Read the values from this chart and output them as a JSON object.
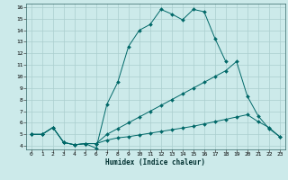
{
  "xlabel": "Humidex (Indice chaleur)",
  "bg_color": "#cceaea",
  "line_color": "#006868",
  "grid_color": "#aacece",
  "xlim": [
    -0.5,
    23.5
  ],
  "ylim": [
    3.7,
    16.3
  ],
  "xticks": [
    0,
    1,
    2,
    3,
    4,
    5,
    6,
    7,
    8,
    9,
    10,
    11,
    12,
    13,
    14,
    15,
    16,
    17,
    18,
    19,
    20,
    21,
    22,
    23
  ],
  "yticks": [
    4,
    5,
    6,
    7,
    8,
    9,
    10,
    11,
    12,
    13,
    14,
    15,
    16
  ],
  "line1_x": [
    0,
    1,
    2,
    3,
    4,
    5,
    6,
    7,
    8,
    9,
    10,
    11,
    12,
    13,
    14,
    15,
    16,
    17,
    18,
    19,
    20,
    21,
    22,
    23
  ],
  "line1_y": [
    5,
    5,
    5.6,
    4.3,
    4.1,
    4.2,
    3.8,
    7.6,
    9.5,
    12.6,
    14.0,
    14.5,
    15.8,
    15.4,
    14.9,
    15.8,
    15.6,
    13.3,
    11.3,
    null,
    null,
    null,
    null,
    null
  ],
  "line2_x": [
    0,
    1,
    2,
    3,
    4,
    5,
    6,
    7,
    8,
    9,
    10,
    11,
    12,
    13,
    14,
    15,
    16,
    17,
    18,
    19,
    20,
    21,
    22,
    23
  ],
  "line2_y": [
    5,
    5,
    5.6,
    4.3,
    4.1,
    4.2,
    4.2,
    5.0,
    5.5,
    6.0,
    6.5,
    7.0,
    7.5,
    8.0,
    8.5,
    9.0,
    9.5,
    10.0,
    10.5,
    11.3,
    8.3,
    6.6,
    5.5,
    4.8
  ],
  "line3_x": [
    0,
    1,
    2,
    3,
    4,
    5,
    6,
    7,
    8,
    9,
    10,
    11,
    12,
    13,
    14,
    15,
    16,
    17,
    18,
    19,
    20,
    21,
    22,
    23
  ],
  "line3_y": [
    5,
    5,
    5.6,
    4.3,
    4.1,
    4.2,
    4.2,
    4.5,
    4.7,
    4.8,
    4.95,
    5.1,
    5.25,
    5.4,
    5.55,
    5.7,
    5.9,
    6.1,
    6.3,
    6.5,
    6.7,
    6.1,
    5.6,
    4.8
  ]
}
